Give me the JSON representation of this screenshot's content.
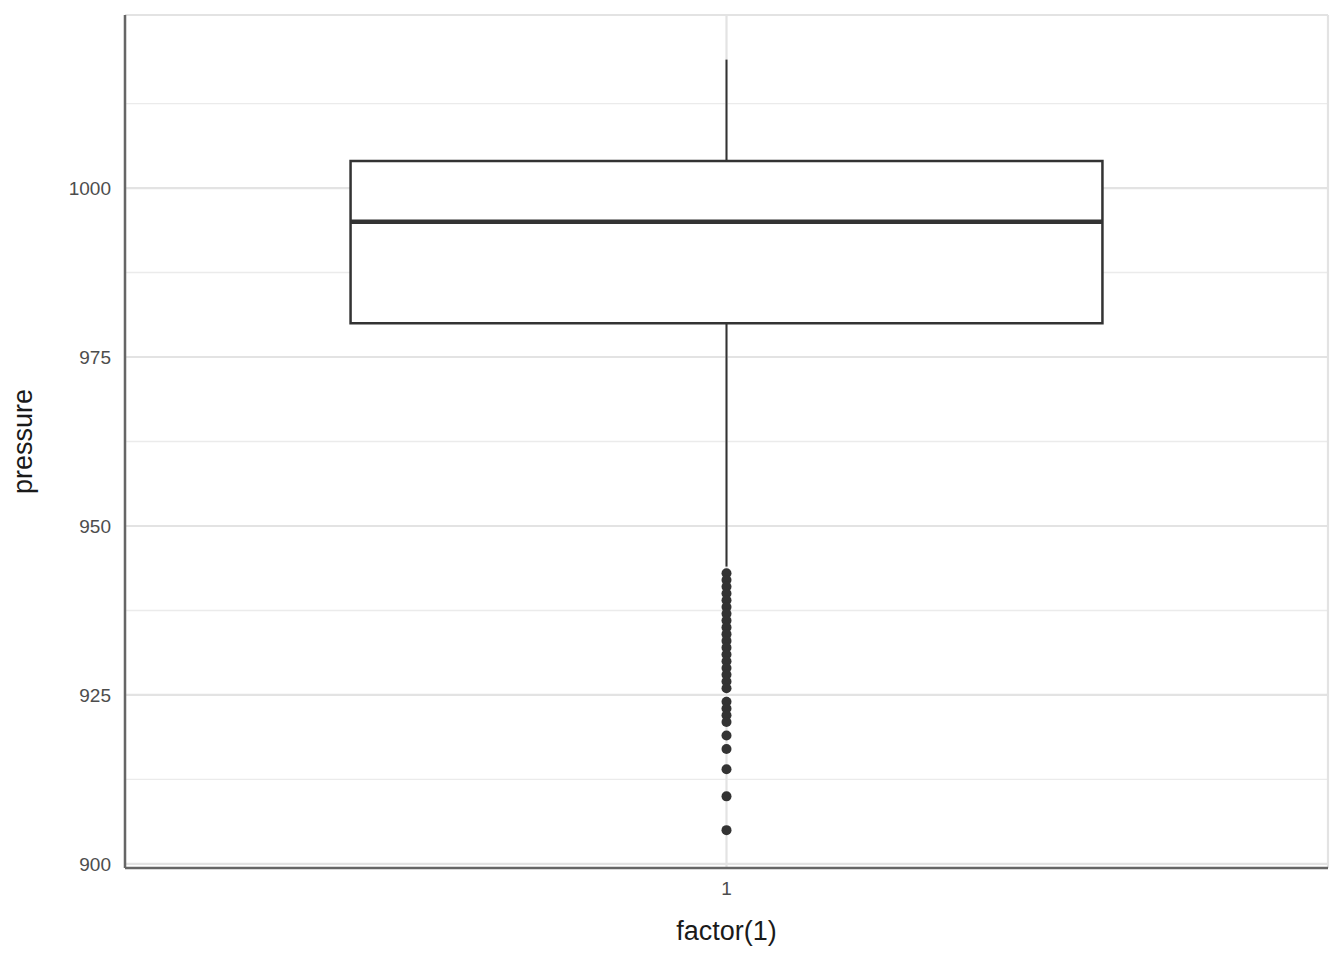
{
  "chart_data": {
    "type": "box",
    "categories": [
      "1"
    ],
    "x_label": "factor(1)",
    "y_label": "pressure",
    "whisker_low": [
      944
    ],
    "q1": [
      980
    ],
    "median": [
      995
    ],
    "q3": [
      1004
    ],
    "whisker_high": [
      1019
    ],
    "outliers": [
      [
        943,
        942,
        941,
        940,
        939,
        938,
        937,
        936,
        935,
        934,
        933,
        932,
        931,
        930,
        929,
        928,
        927,
        926,
        924,
        923,
        922,
        921,
        919,
        917,
        914,
        910,
        905
      ]
    ],
    "ylim": [
      899.4,
      1025.6
    ],
    "yticks": [
      900,
      925,
      950,
      975,
      1000
    ],
    "grid": true,
    "color": "#333333"
  }
}
